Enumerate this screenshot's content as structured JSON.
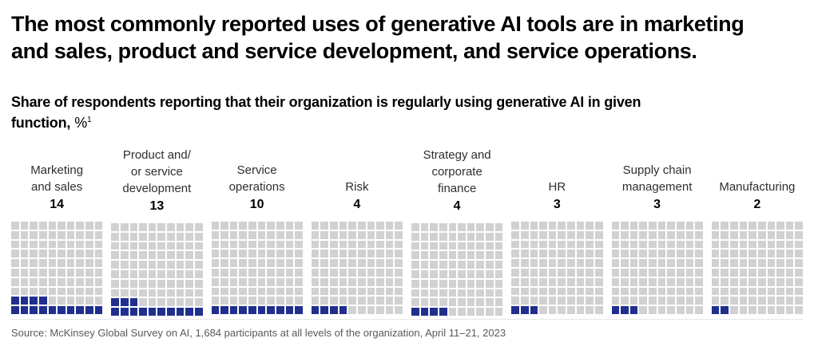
{
  "title": "The most commonly reported uses of generative AI tools are in marketing\nand sales, product and service development, and service operations.",
  "subtitle": {
    "bold_text": "Share of respondents reporting that their organization is regularly using generative AI in given\nfunction,",
    "unit": "%",
    "footnote_marker": "1"
  },
  "chart_data": {
    "type": "waffle",
    "title": "Share of respondents reporting that their organization is regularly using generative AI in given function, %",
    "grid": {
      "rows": 10,
      "cols": 10,
      "total_units": 100
    },
    "unit": "% of respondents, 1 square = 1%",
    "categories": [
      "Marketing\nand sales",
      "Product and/\nor service\ndevelopment",
      "Service\noperations",
      "Risk",
      "Strategy and\ncorporate\nfinance",
      "HR",
      "Supply chain\nmanagement",
      "Manufacturing"
    ],
    "values": [
      14,
      13,
      10,
      4,
      4,
      3,
      3,
      2
    ],
    "fill_origin": "bottom-left",
    "legend_position": "none",
    "colors": {
      "filled": "#202f8e",
      "empty": "#d1d1d1"
    }
  },
  "source": "Source: McKinsey Global Survey on AI, 1,684 participants at all levels of the organization, April 11–21, 2023"
}
